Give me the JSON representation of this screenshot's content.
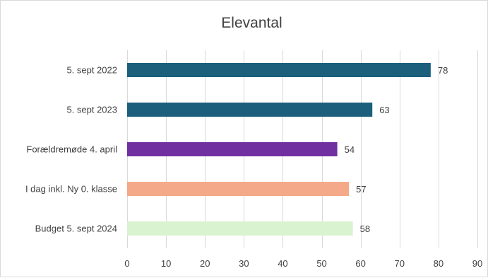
{
  "chart_data": {
    "type": "bar",
    "orientation": "horizontal",
    "title": "Elevantal",
    "xlabel": "",
    "ylabel": "",
    "categories": [
      "5. sept 2022",
      "5. sept 2023",
      "Forældremøde 4. april",
      "I dag inkl. Ny 0. klasse",
      "Budget 5. sept 2024"
    ],
    "values": [
      78,
      63,
      54,
      57,
      58
    ],
    "colors": [
      "#1b5f7d",
      "#1b5f7d",
      "#7030a0",
      "#f4a988",
      "#d9f2d0"
    ],
    "xlim": [
      0,
      90
    ],
    "ticks": [
      0,
      10,
      20,
      30,
      40,
      50,
      60,
      70,
      80,
      90
    ],
    "grid": "vertical",
    "legend": "none"
  }
}
